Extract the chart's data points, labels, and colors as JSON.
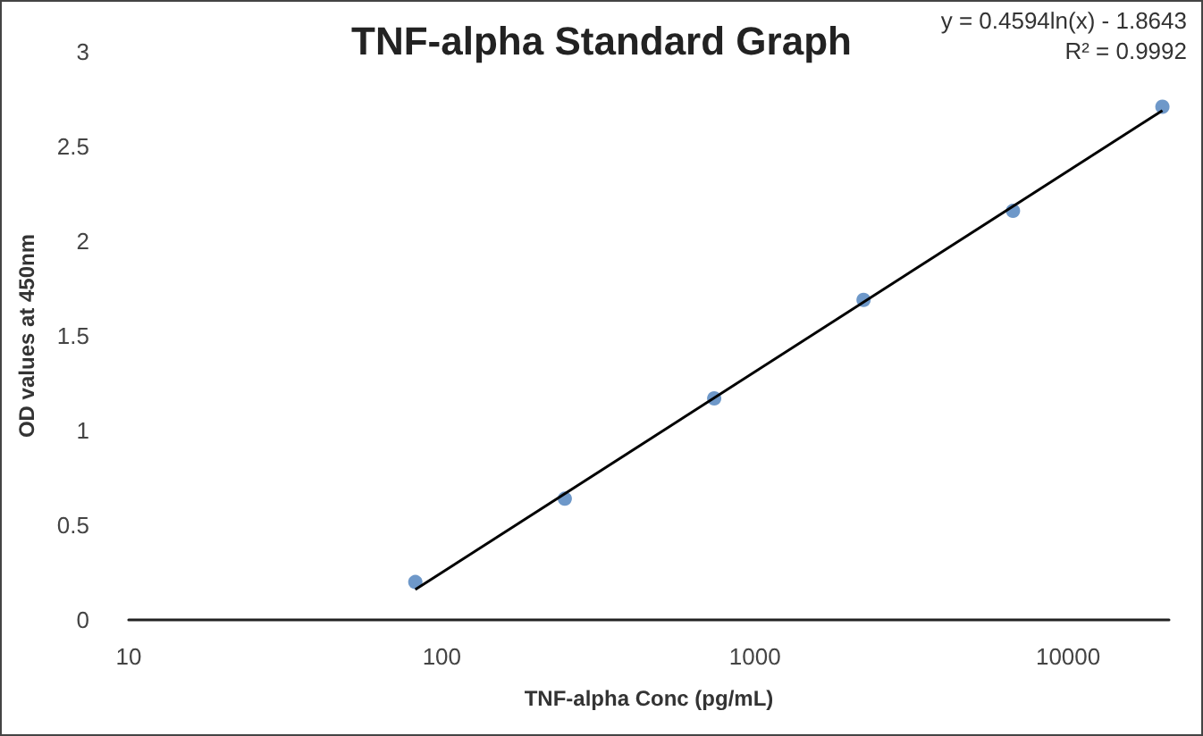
{
  "chart_data": {
    "type": "scatter",
    "title": "TNF-alpha Standard Graph",
    "xlabel": "TNF-alpha Conc (pg/mL)",
    "ylabel": "OD values at 450nm",
    "annotations": [
      "y = 0.4594ln(x) - 1.8643",
      "R² = 0.9992"
    ],
    "log": "x",
    "grid": false,
    "marker": "circle",
    "xlim": [
      10,
      21000
    ],
    "xticks": [
      10,
      100,
      1000,
      10000
    ],
    "ylim": [
      0,
      3
    ],
    "yticks": [
      0,
      0.5,
      1,
      1.5,
      2,
      2.5,
      3
    ],
    "series": [
      {
        "color": "#4a7ebb",
        "x": [
          82.3,
          247,
          741,
          2222,
          6667,
          20000
        ],
        "values": [
          0.2,
          0.64,
          1.17,
          1.69,
          2.16,
          2.71
        ]
      },
      {
        "type": "line",
        "color": "#000000",
        "marker": "none",
        "line_style": "solid",
        "x": [
          82.3,
          20000
        ],
        "values": [
          0.16,
          2.69
        ]
      }
    ]
  }
}
